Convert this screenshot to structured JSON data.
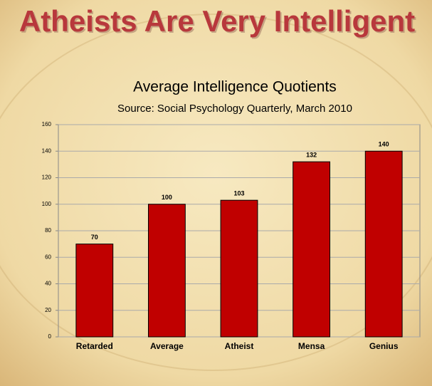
{
  "slide_title": "Atheists Are Very Intelligent",
  "chart_data": {
    "type": "bar",
    "title": "Average Intelligence Quotients",
    "subtitle": "Source: Social Psychology Quarterly, March 2010",
    "categories": [
      "Retarded",
      "Average",
      "Atheist",
      "Mensa",
      "Genius"
    ],
    "values": [
      70,
      100,
      103,
      132,
      140
    ],
    "color": "#c00000",
    "ylim": [
      0,
      160
    ],
    "yticks": [
      0,
      20,
      40,
      60,
      80,
      100,
      120,
      140,
      160
    ],
    "grid": true
  }
}
